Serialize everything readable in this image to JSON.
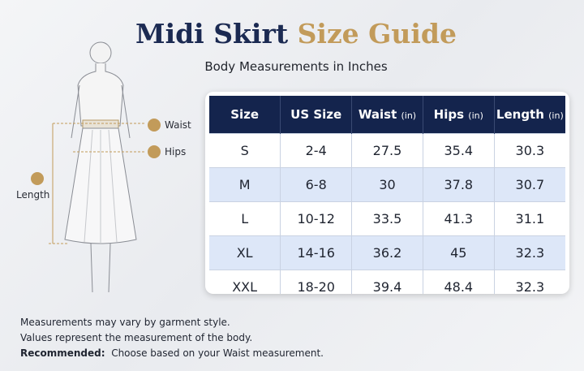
{
  "header": {
    "title_main": "Midi Skirt",
    "title_accent": "Size Guide",
    "subtitle": "Body Measurements in Inches"
  },
  "figure": {
    "waist_label": "Waist",
    "hips_label": "Hips",
    "length_label": "Length"
  },
  "table": {
    "columns": [
      {
        "label": "Size"
      },
      {
        "label": "US Size"
      },
      {
        "label": "Waist",
        "unit": "(in)"
      },
      {
        "label": "Hips",
        "unit": "(in)"
      },
      {
        "label": "Length",
        "unit": "(in)"
      }
    ],
    "rows": [
      [
        "S",
        "2-4",
        27.5,
        35.4,
        30.3
      ],
      [
        "M",
        "6-8",
        30,
        37.8,
        30.7
      ],
      [
        "L",
        "10-12",
        33.5,
        41.3,
        31.1
      ],
      [
        "XL",
        "14-16",
        36.2,
        45,
        32.3
      ],
      [
        "XXL",
        "18-20",
        39.4,
        48.4,
        32.3
      ]
    ]
  },
  "notes": {
    "line1": "Measurements may vary by garment style.",
    "line2": "Values represent the measurement of the body.",
    "recommended_label": "Recommended:",
    "recommended_text": "Choose based on your Waist measurement."
  }
}
